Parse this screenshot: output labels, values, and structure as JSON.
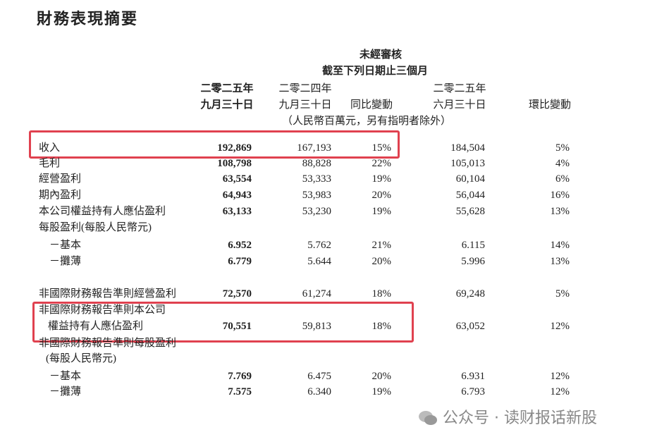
{
  "title": "財務表現摘要",
  "header": {
    "audit": "未經審核",
    "period": "截至下列日期止三個月",
    "columns": [
      [
        "二零二五年",
        "九月三十日"
      ],
      [
        "二零二四年",
        "九月三十日"
      ],
      [
        "同比變動"
      ],
      [
        "二零二五年",
        "六月三十日"
      ],
      [
        "環比變動"
      ]
    ],
    "unit": "（人民幣百萬元，另有指明者除外）"
  },
  "table": {
    "rows": [
      {
        "label": "收入",
        "values": [
          "192,869",
          "167,193",
          "15%",
          "184,504",
          "5%"
        ]
      },
      {
        "label": "毛利",
        "values": [
          "108,798",
          "88,828",
          "22%",
          "105,013",
          "4%"
        ]
      },
      {
        "label": "經營盈利",
        "values": [
          "63,554",
          "53,333",
          "19%",
          "60,104",
          "6%"
        ]
      },
      {
        "label": "期內盈利",
        "values": [
          "64,943",
          "53,983",
          "20%",
          "56,044",
          "16%"
        ]
      },
      {
        "label": "本公司權益持有人應佔盈利",
        "values": [
          "63,133",
          "53,230",
          "19%",
          "55,628",
          "13%"
        ]
      },
      {
        "label": "每股盈利(每股人民幣元)"
      },
      {
        "label": "－基本",
        "values": [
          "6.952",
          "5.762",
          "21%",
          "6.115",
          "14%"
        ]
      },
      {
        "label": "－攤薄",
        "values": [
          "6.779",
          "5.644",
          "20%",
          "5.996",
          "13%"
        ]
      },
      {
        "label": "非國際財務報告準則經營盈利",
        "values": [
          "72,570",
          "61,274",
          "18%",
          "69,248",
          "5%"
        ]
      },
      {
        "label": "非國際財務報告準則本公司"
      },
      {
        "label": "權益持有人應佔盈利",
        "values": [
          "70,551",
          "59,813",
          "18%",
          "63,052",
          "12%"
        ]
      },
      {
        "label": "非國際財務報告準則每股盈利"
      },
      {
        "label": "(每股人民幣元)"
      },
      {
        "label": "－基本",
        "values": [
          "7.769",
          "6.475",
          "20%",
          "6.931",
          "12%"
        ]
      },
      {
        "label": "－攤薄",
        "values": [
          "7.575",
          "6.340",
          "19%",
          "6.793",
          "12%"
        ]
      }
    ]
  },
  "watermark": "公众号 · 读财报话新股"
}
